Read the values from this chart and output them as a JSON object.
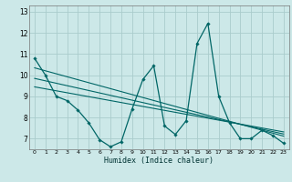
{
  "xlabel": "Humidex (Indice chaleur)",
  "bg_color": "#cce8e8",
  "grid_color": "#aacccc",
  "line_color": "#006666",
  "xlim": [
    -0.5,
    23.5
  ],
  "ylim": [
    6.5,
    13.3
  ],
  "yticks": [
    7,
    8,
    9,
    10,
    11,
    12,
    13
  ],
  "xticks": [
    0,
    1,
    2,
    3,
    4,
    5,
    6,
    7,
    8,
    9,
    10,
    11,
    12,
    13,
    14,
    15,
    16,
    17,
    18,
    19,
    20,
    21,
    22,
    23
  ],
  "series_main": {
    "x": [
      0,
      1,
      2,
      3,
      4,
      5,
      6,
      7,
      8,
      9,
      10,
      11,
      12,
      13,
      14,
      15,
      16,
      17,
      18,
      19,
      20,
      21,
      22,
      23
    ],
    "y": [
      10.8,
      10.0,
      9.0,
      8.8,
      8.35,
      7.75,
      6.95,
      6.62,
      6.85,
      8.4,
      9.8,
      10.45,
      7.6,
      7.2,
      7.85,
      11.5,
      12.45,
      9.0,
      7.75,
      7.0,
      7.0,
      7.4,
      7.15,
      6.78
    ]
  },
  "trend_lines": [
    {
      "x": [
        0,
        23
      ],
      "y": [
        10.35,
        7.12
      ]
    },
    {
      "x": [
        0,
        23
      ],
      "y": [
        9.85,
        7.22
      ]
    },
    {
      "x": [
        0,
        23
      ],
      "y": [
        9.45,
        7.32
      ]
    }
  ]
}
